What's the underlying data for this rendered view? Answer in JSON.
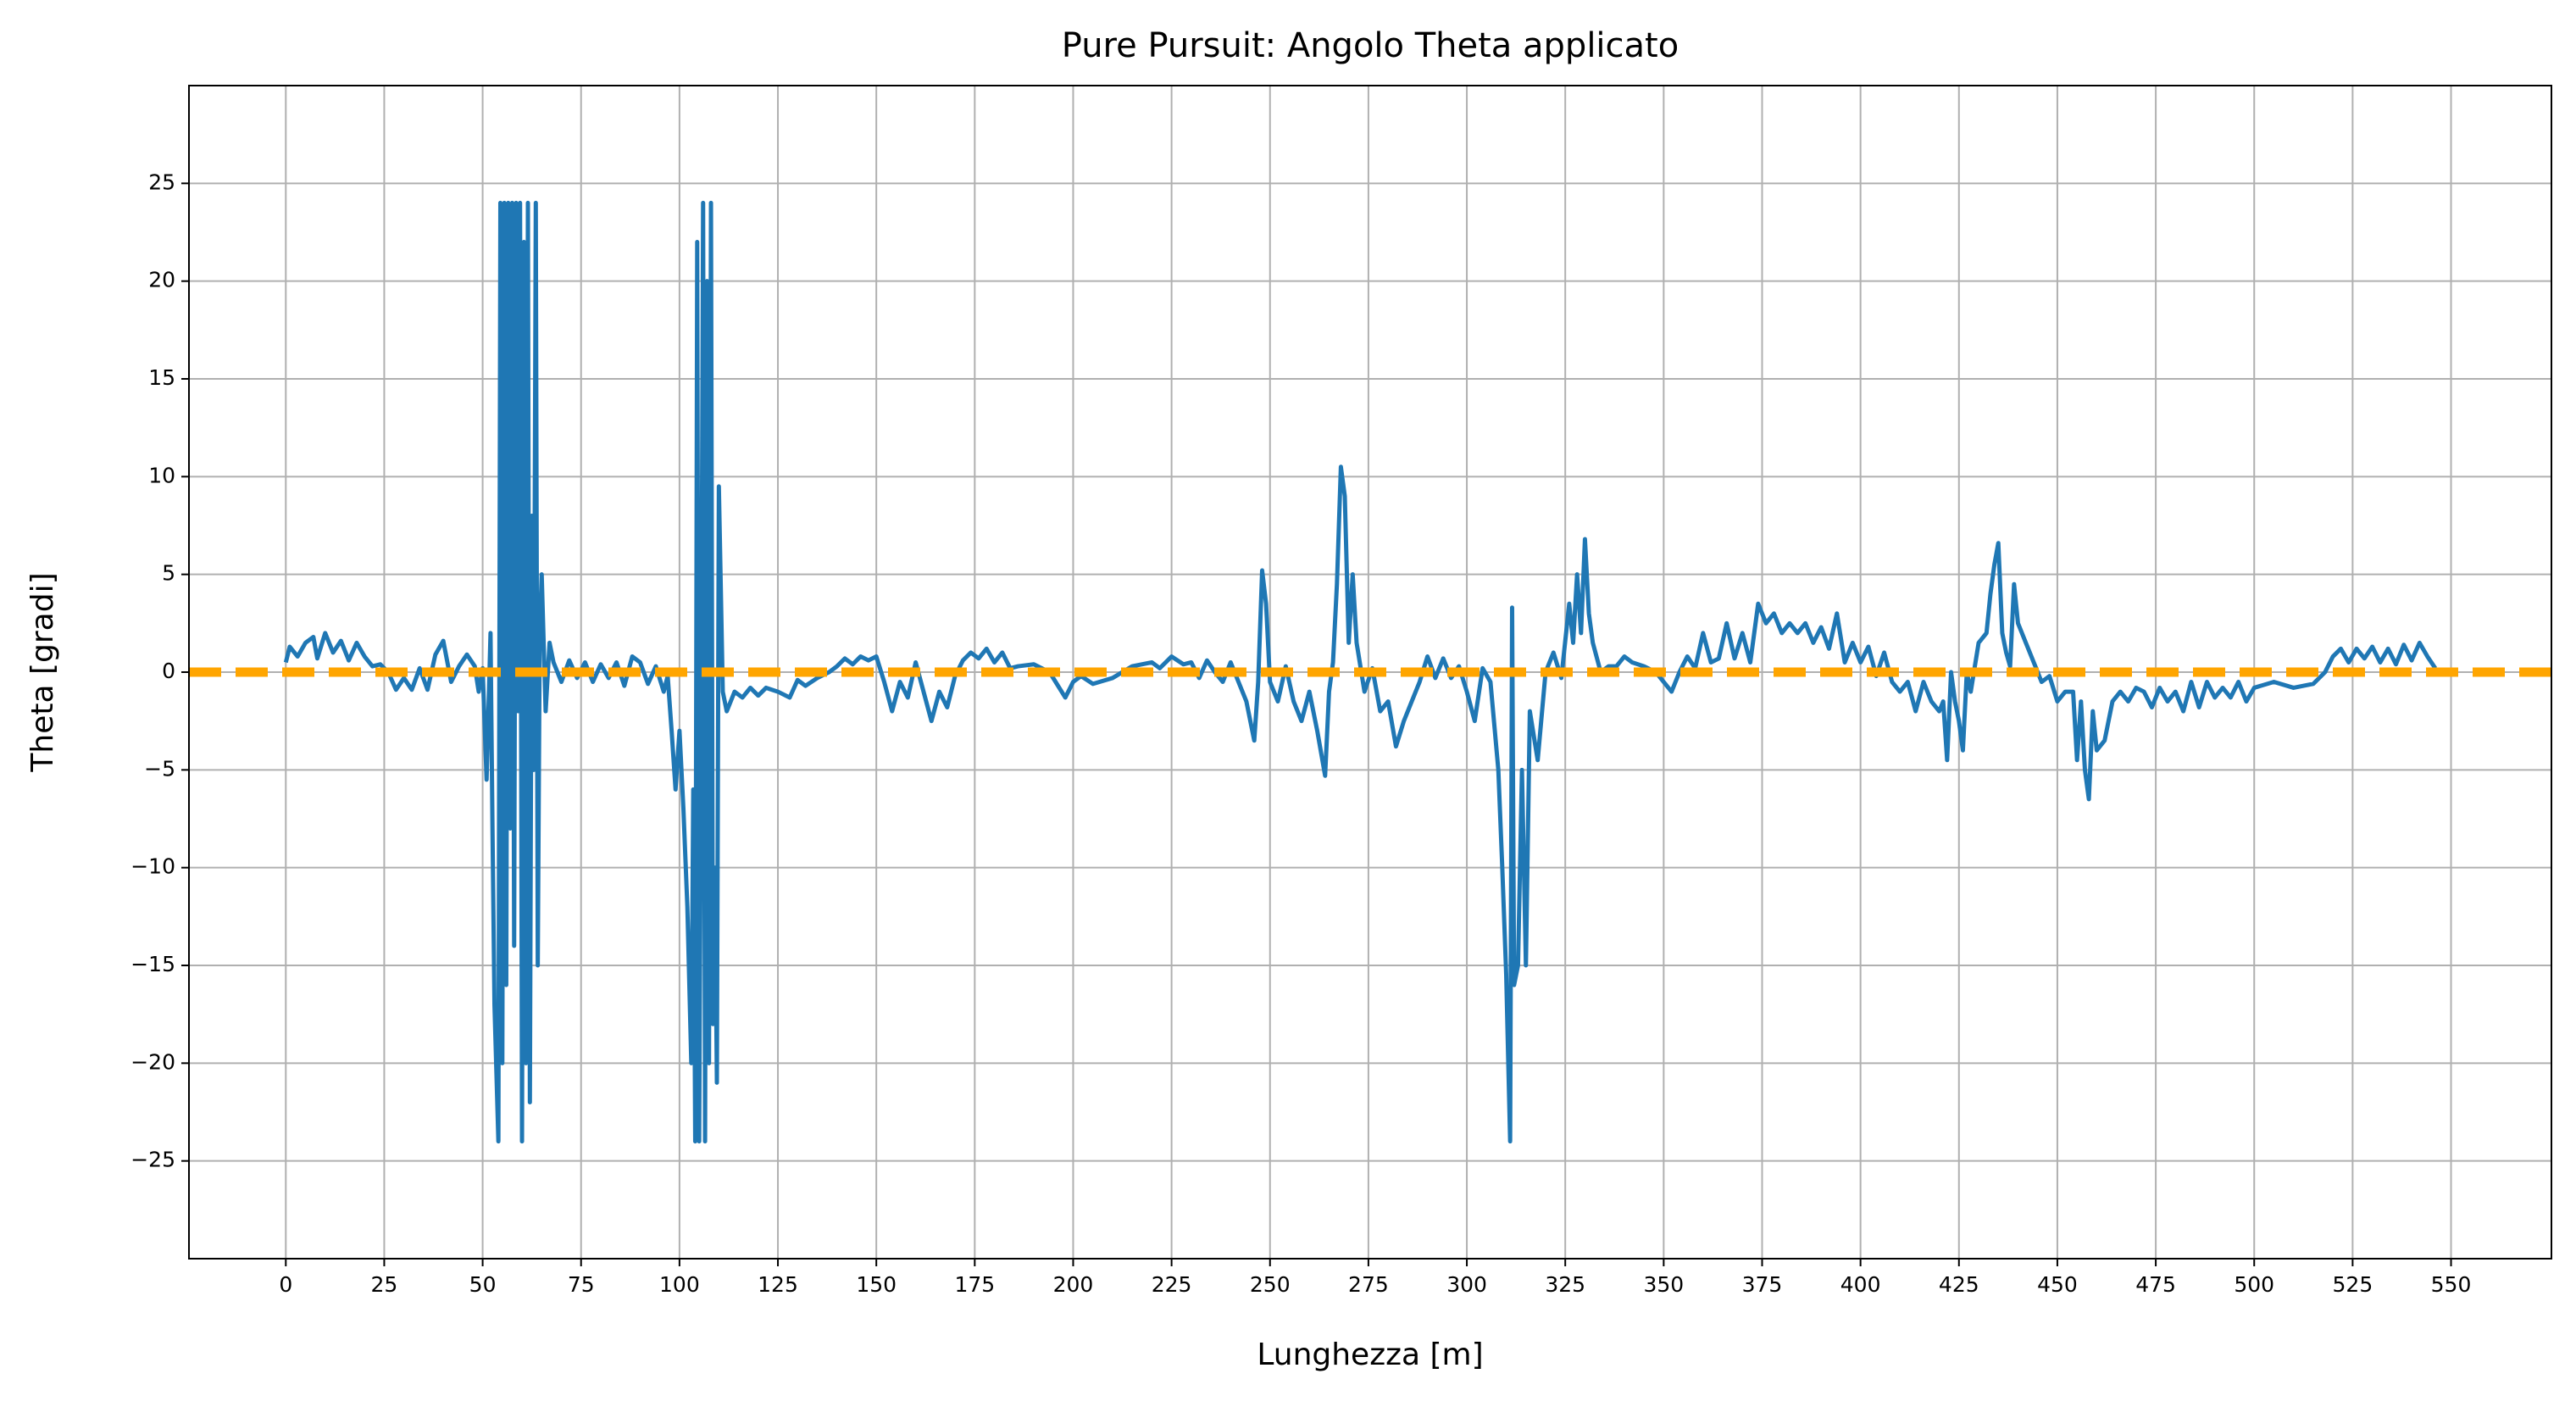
{
  "chart_data": {
    "type": "line",
    "title": "Pure Pursuit: Angolo Theta applicato",
    "xlabel": "Lunghezza [m]",
    "ylabel": "Theta [gradi]",
    "color": "#1f77b4",
    "x": [
      0,
      1,
      3,
      5,
      7,
      8,
      10,
      12,
      14,
      16,
      18,
      20,
      22,
      24,
      26,
      28,
      30,
      32,
      34,
      36,
      38,
      40,
      42,
      44,
      46,
      48,
      49,
      50,
      51,
      52,
      52.5,
      53,
      54,
      54.5,
      55,
      55.5,
      56,
      56.5,
      57,
      57.5,
      58,
      58.5,
      59,
      59.5,
      60,
      60.5,
      61,
      61.5,
      62,
      62.5,
      63,
      63.5,
      64,
      64.5,
      65,
      66,
      67,
      68,
      70,
      72,
      74,
      76,
      78,
      80,
      82,
      84,
      86,
      88,
      90,
      92,
      94,
      96,
      97,
      98,
      99,
      100,
      101,
      102,
      103,
      103.5,
      104,
      104.5,
      105,
      105.5,
      106,
      106.5,
      107,
      107.5,
      108,
      108.5,
      109,
      109.5,
      110,
      111,
      112,
      114,
      116,
      118,
      120,
      122,
      125,
      128,
      130,
      132,
      135,
      138,
      140,
      142,
      144,
      146,
      148,
      150,
      152,
      154,
      156,
      158,
      160,
      162,
      164,
      166,
      168,
      170,
      172,
      174,
      176,
      178,
      180,
      182,
      184,
      186,
      190,
      194,
      198,
      200,
      202,
      205,
      210,
      215,
      220,
      222,
      225,
      228,
      230,
      232,
      234,
      236,
      238,
      240,
      242,
      244,
      246,
      247,
      248,
      249,
      250,
      252,
      254,
      256,
      258,
      260,
      262,
      264,
      265,
      266,
      267,
      268,
      269,
      270,
      271,
      272,
      274,
      276,
      278,
      280,
      282,
      284,
      286,
      288,
      290,
      292,
      294,
      296,
      298,
      300,
      302,
      304,
      306,
      308,
      309,
      310,
      311,
      311.5,
      312,
      313,
      314,
      315,
      316,
      318,
      320,
      322,
      324,
      326,
      327,
      328,
      329,
      330,
      331,
      332,
      334,
      336,
      338,
      340,
      342,
      345,
      348,
      350,
      352,
      354,
      356,
      358,
      360,
      362,
      364,
      366,
      368,
      370,
      372,
      374,
      376,
      378,
      380,
      382,
      384,
      386,
      388,
      390,
      392,
      394,
      396,
      398,
      400,
      402,
      404,
      406,
      408,
      410,
      412,
      414,
      416,
      418,
      420,
      421,
      422,
      423,
      424,
      425,
      426,
      427,
      428,
      430,
      432,
      433,
      434,
      435,
      436,
      437,
      438,
      439,
      440,
      442,
      444,
      446,
      448,
      450,
      452,
      454,
      455,
      456,
      457,
      458,
      459,
      460,
      462,
      464,
      466,
      468,
      470,
      472,
      474,
      476,
      478,
      480,
      482,
      484,
      486,
      488,
      490,
      492,
      494,
      496,
      498,
      500,
      505,
      510,
      515,
      518,
      520,
      522,
      524,
      526,
      528,
      530,
      532,
      534,
      536,
      538,
      540,
      542,
      544,
      546
    ],
    "values": [
      0.5,
      1.3,
      0.8,
      1.5,
      1.8,
      0.7,
      2.0,
      1.0,
      1.6,
      0.6,
      1.5,
      0.8,
      0.3,
      0.4,
      0,
      -0.9,
      -0.3,
      -0.9,
      0.2,
      -0.9,
      0.9,
      1.6,
      -0.5,
      0.3,
      0.9,
      0.3,
      -1,
      0.2,
      -5.5,
      2,
      -8,
      -17,
      -24,
      24,
      -20,
      24,
      -16,
      24,
      -8,
      24,
      -14,
      24,
      -2,
      24,
      -24,
      22,
      -20,
      24,
      -22,
      8,
      -5,
      24,
      -15,
      2,
      5,
      -2,
      1.5,
      0.5,
      -0.5,
      0.6,
      -0.3,
      0.5,
      -0.5,
      0.4,
      -0.3,
      0.5,
      -0.7,
      0.8,
      0.5,
      -0.6,
      0.3,
      -1,
      -0.2,
      -3,
      -6,
      -3,
      -7,
      -12,
      -20,
      -6,
      -24,
      22,
      -24,
      -3,
      24,
      -24,
      20,
      -20,
      24,
      -18,
      -10,
      -21,
      9.5,
      -1,
      -2,
      -1,
      -1.3,
      -0.8,
      -1.2,
      -0.8,
      -1,
      -1.3,
      -0.4,
      -0.7,
      -0.3,
      0,
      0.3,
      0.7,
      0.4,
      0.8,
      0.6,
      0.8,
      -0.5,
      -2,
      -0.5,
      -1.3,
      0.5,
      -1,
      -2.5,
      -1,
      -1.8,
      -0.2,
      0.6,
      1.0,
      0.7,
      1.2,
      0.5,
      1.0,
      0.2,
      0.3,
      0.4,
      0,
      -1.3,
      -0.5,
      -0.2,
      -0.6,
      -0.3,
      0.3,
      0.5,
      0.2,
      0.8,
      0.4,
      0.5,
      -0.3,
      0.6,
      0,
      -0.5,
      0.5,
      -0.5,
      -1.5,
      -3.5,
      -0.5,
      5.2,
      3.5,
      -0.5,
      -1.5,
      0.3,
      -1.5,
      -2.5,
      -1,
      -3,
      -5.3,
      -1,
      0.5,
      4.5,
      10.5,
      9,
      1.5,
      5,
      1.5,
      -1,
      0.2,
      -2,
      -1.5,
      -3.8,
      -2.5,
      -1.5,
      -0.5,
      0.8,
      -0.3,
      0.7,
      -0.3,
      0.3,
      -1,
      -2.5,
      0.2,
      -0.5,
      -5,
      -10,
      -15.5,
      -24,
      3.3,
      -16,
      -15,
      -5,
      -15,
      -2,
      -4.5,
      0,
      1,
      -0.3,
      3.5,
      1.5,
      5,
      2,
      6.8,
      3,
      1.5,
      0,
      0.3,
      0.3,
      0.8,
      0.5,
      0.3,
      0,
      -0.5,
      -1,
      0,
      0.8,
      0.2,
      2,
      0.5,
      0.7,
      2.5,
      0.7,
      2,
      0.5,
      3.5,
      2.5,
      3,
      2,
      2.5,
      2,
      2.5,
      1.5,
      2.3,
      1.2,
      3,
      0.5,
      1.5,
      0.5,
      1.3,
      -0.2,
      1,
      -0.5,
      -1,
      -0.5,
      -2,
      -0.5,
      -1.5,
      -2,
      -1.5,
      -4.5,
      0,
      -1.5,
      -2.5,
      -4,
      0,
      -1,
      1.5,
      2,
      4,
      5.5,
      6.6,
      2,
      1,
      0.3,
      4.5,
      2.5,
      1.5,
      0.5,
      -0.5,
      -0.2,
      -1.5,
      -1,
      -1,
      -4.5,
      -1.5,
      -5,
      -6.5,
      -2,
      -4,
      -3.5,
      -1.5,
      -1,
      -1.5,
      -0.8,
      -1,
      -1.8,
      -0.8,
      -1.5,
      -1,
      -2,
      -0.5,
      -1.8,
      -0.5,
      -1.3,
      -0.8,
      -1.3,
      -0.5,
      -1.5,
      -0.8,
      -0.5,
      -0.8,
      -0.6,
      0,
      0.8,
      1.2,
      0.5,
      1.2,
      0.7,
      1.3,
      0.5,
      1.2,
      0.4,
      1.4,
      0.6,
      1.5,
      0.8,
      0.2
    ],
    "reference_line": {
      "y": 0,
      "color": "#ffa500"
    },
    "xlim": [
      -24.6,
      575.5
    ],
    "ylim": [
      -30,
      30
    ],
    "xticks": [
      0,
      25,
      50,
      75,
      100,
      125,
      150,
      175,
      200,
      225,
      250,
      275,
      300,
      325,
      350,
      375,
      400,
      425,
      450,
      475,
      500,
      525,
      550
    ],
    "yticks": [
      {
        "value": -25,
        "label": "−25"
      },
      {
        "value": -20,
        "label": "−20"
      },
      {
        "value": -15,
        "label": "−15"
      },
      {
        "value": -10,
        "label": "−10"
      },
      {
        "value": -5,
        "label": "−5"
      },
      0,
      5,
      10,
      15,
      20,
      25
    ],
    "grid": true
  }
}
